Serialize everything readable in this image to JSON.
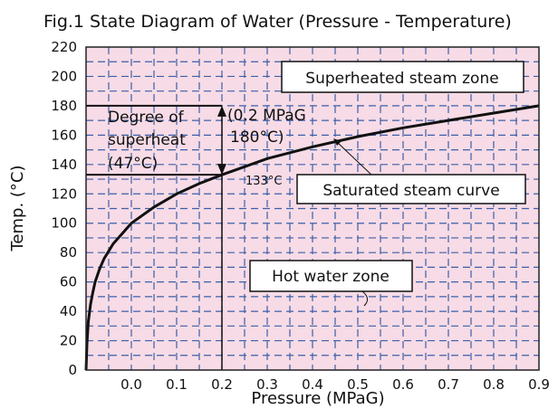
{
  "chart_data": {
    "type": "line",
    "title": "Fig.1 State Diagram of Water (Pressure - Temperature)",
    "xlabel": "Pressure (MPaG)",
    "ylabel": "Temp. (°C)",
    "xlim": [
      -0.1,
      0.9
    ],
    "ylim": [
      0,
      220
    ],
    "x_ticks": [
      "0.0",
      "0.1",
      "0.2",
      "0.3",
      "0.4",
      "0.5",
      "0.6",
      "0.7",
      "0.8",
      "0.9"
    ],
    "y_ticks": [
      "0",
      "20",
      "40",
      "60",
      "80",
      "100",
      "120",
      "140",
      "160",
      "180",
      "200",
      "220"
    ],
    "grid": true,
    "background_color": "#f7dbe6",
    "grid_color": "#3d5fa8",
    "series": [
      {
        "x": [
          -0.1,
          -0.098,
          -0.095,
          -0.09,
          -0.085,
          -0.08,
          -0.07,
          -0.06,
          -0.05,
          -0.04,
          -0.02,
          0.0,
          0.05,
          0.1,
          0.15,
          0.2,
          0.3,
          0.4,
          0.5,
          0.6,
          0.7,
          0.8,
          0.9
        ],
        "y": [
          0,
          18,
          33,
          45,
          53,
          60,
          69,
          76,
          81,
          86,
          93,
          100,
          111,
          120,
          127,
          133,
          144,
          152,
          159,
          165,
          170,
          175,
          180
        ]
      }
    ],
    "annotations": {
      "superheated_zone": "Superheated steam zone",
      "degree_line1": "Degree of",
      "degree_line2": "superheat",
      "degree_line3": "(47°C)",
      "point_line1": "(0.2 MPaG",
      "point_line2": "180°C)",
      "point_temp": "133°C",
      "sat_curve": "Saturated steam curve",
      "hot_water_zone": "Hot water zone"
    }
  }
}
